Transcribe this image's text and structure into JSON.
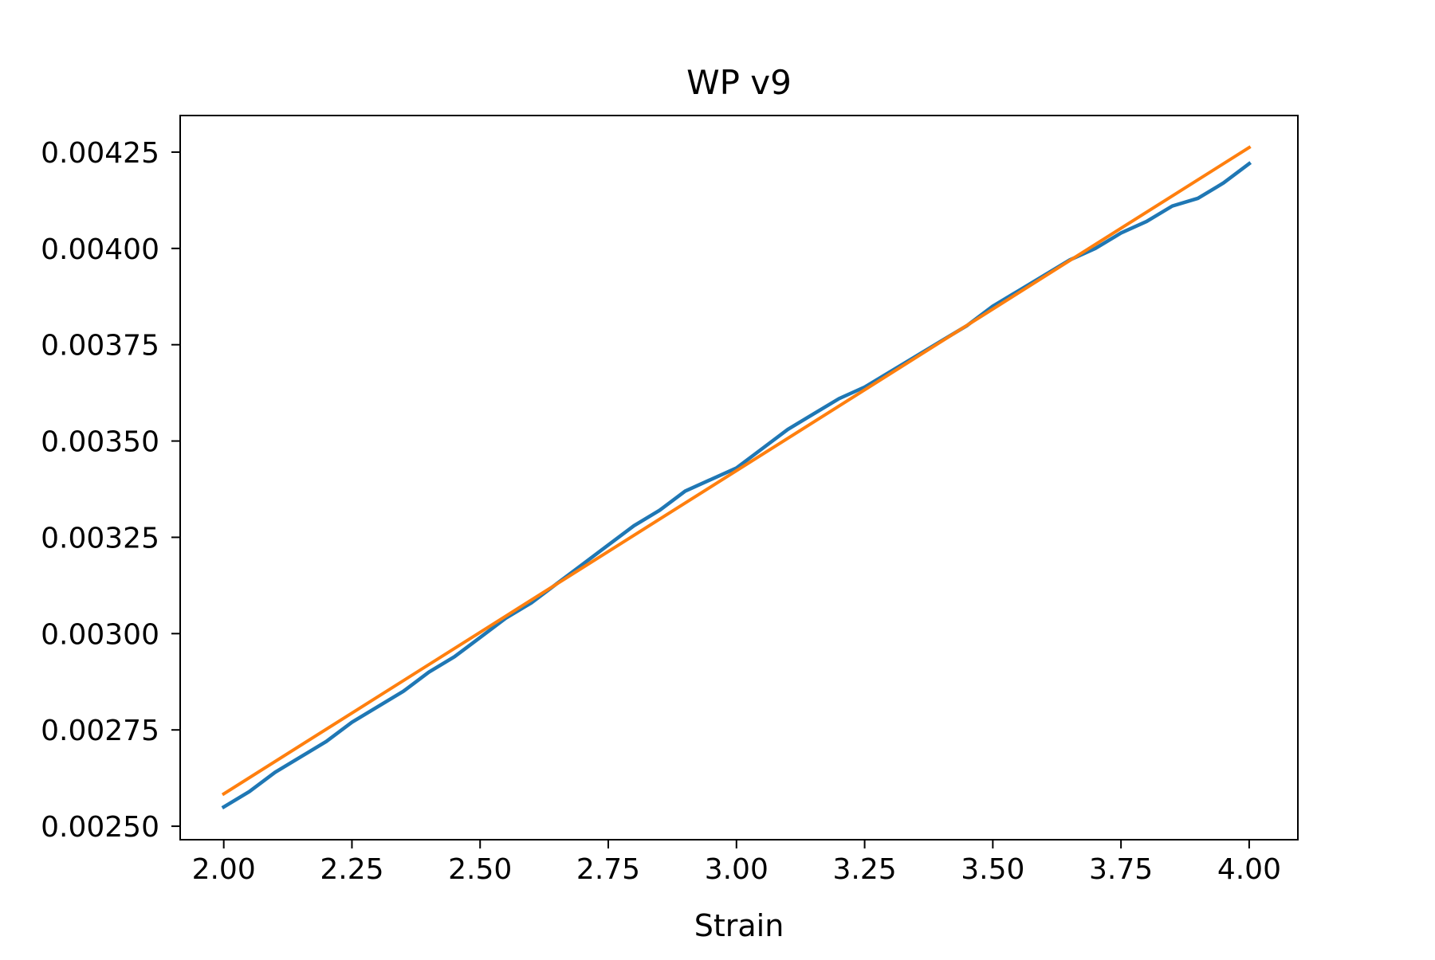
{
  "chart_data": {
    "type": "line",
    "title": "WP v9",
    "xlabel": "Strain",
    "ylabel": "",
    "xlim": [
      1.915,
      4.095
    ],
    "ylim": [
      0.002465,
      0.004345
    ],
    "xticks": [
      "2.00",
      "2.25",
      "2.50",
      "2.75",
      "3.00",
      "3.25",
      "3.50",
      "3.75",
      "4.00"
    ],
    "yticks": [
      "0.00250",
      "0.00275",
      "0.00300",
      "0.00325",
      "0.00350",
      "0.00375",
      "0.00400",
      "0.00425"
    ],
    "grid": false,
    "legend": "none",
    "series": [
      {
        "color": "#1f77b4",
        "x": [
          2.0,
          2.05,
          2.1,
          2.15,
          2.2,
          2.25,
          2.3,
          2.35,
          2.4,
          2.45,
          2.5,
          2.55,
          2.6,
          2.65,
          2.7,
          2.75,
          2.8,
          2.85,
          2.9,
          2.95,
          3.0,
          3.05,
          3.1,
          3.15,
          3.2,
          3.25,
          3.3,
          3.35,
          3.4,
          3.45,
          3.5,
          3.55,
          3.6,
          3.65,
          3.7,
          3.75,
          3.8,
          3.85,
          3.9,
          3.95,
          4.0
        ],
        "y": [
          0.00255,
          0.00259,
          0.00264,
          0.00268,
          0.00272,
          0.00277,
          0.00281,
          0.00285,
          0.0029,
          0.00294,
          0.00299,
          0.00304,
          0.00308,
          0.00313,
          0.00318,
          0.00323,
          0.00328,
          0.00332,
          0.00337,
          0.0034,
          0.00343,
          0.00348,
          0.00353,
          0.00357,
          0.00361,
          0.00364,
          0.00368,
          0.00372,
          0.00376,
          0.0038,
          0.00385,
          0.00389,
          0.00393,
          0.00397,
          0.004,
          0.00404,
          0.00407,
          0.00411,
          0.00413,
          0.00417,
          0.00422
        ]
      },
      {
        "color": "#ff7f0e",
        "x": [
          2.0,
          4.0
        ],
        "y": [
          0.002584,
          0.004262
        ]
      }
    ]
  }
}
